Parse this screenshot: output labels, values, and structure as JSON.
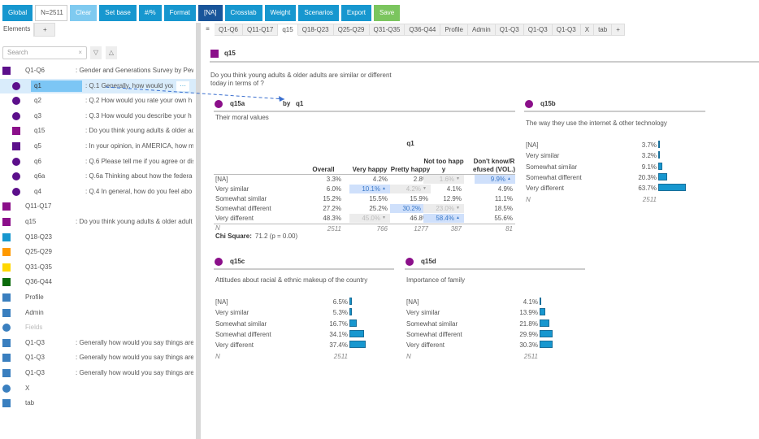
{
  "toolbar": {
    "global": "Global",
    "n": "N=2511",
    "clear": "Clear",
    "set_base": "Set base",
    "pct": "#/%",
    "format": "Format",
    "na": "[NA]",
    "crosstab": "Crosstab",
    "weight": "Weight",
    "scenarios": "Scenarios",
    "export": "Export",
    "save": "Save"
  },
  "left": {
    "tab": "Elements",
    "plus": "+",
    "search_placeholder": "Search",
    "clear": "×",
    "down": "▽",
    "up": "△",
    "items": [
      {
        "name": "Q1-Q6",
        "desc": ": Gender and Generations Survey by Pew",
        "icon": "square",
        "color": "#5c0f8b",
        "indent": 0
      },
      {
        "name": "q1",
        "desc": ": Q.1 Generally, how would you say",
        "icon": "circle",
        "color": "#5c0f8b",
        "indent": 1,
        "selected": true
      },
      {
        "name": "q2",
        "desc": ": Q.2 How would you rate your own h",
        "icon": "circle",
        "color": "#5c0f8b",
        "indent": 1
      },
      {
        "name": "q3",
        "desc": ": Q.3 How would you describe your h",
        "icon": "circle",
        "color": "#5c0f8b",
        "indent": 1
      },
      {
        "name": "q15",
        "desc": ": Do you think young adults & older ad",
        "icon": "square",
        "color": "#8b0f8a",
        "indent": 1
      },
      {
        "name": "q5",
        "desc": ": In your opinion, in AMERICA, how m",
        "icon": "square",
        "color": "#5c0f8b",
        "indent": 1
      },
      {
        "name": "q6",
        "desc": ": Q.6 Please tell me if you agree or dis",
        "icon": "circle",
        "color": "#5c0f8b",
        "indent": 1
      },
      {
        "name": "q6a",
        "desc": ": Q.6a Thinking about how the federa",
        "icon": "circle",
        "color": "#5c0f8b",
        "indent": 1
      },
      {
        "name": "q4",
        "desc": ": Q.4 In general, how do you feel abo",
        "icon": "circle",
        "color": "#5c0f8b",
        "indent": 1
      },
      {
        "name": "Q11-Q17",
        "desc": "",
        "icon": "square",
        "color": "#8b0f8a",
        "indent": 0
      },
      {
        "name": "q15",
        "desc": ": Do you think young adults & older adult",
        "icon": "square",
        "color": "#8b0f8a",
        "indent": 0
      },
      {
        "name": "Q18-Q23",
        "desc": "",
        "icon": "square",
        "color": "#1797cf",
        "indent": 0
      },
      {
        "name": "Q25-Q29",
        "desc": "",
        "icon": "square",
        "color": "#ff9900",
        "indent": 0
      },
      {
        "name": "Q31-Q35",
        "desc": "",
        "icon": "square",
        "color": "#ffd700",
        "indent": 0
      },
      {
        "name": "Q36-Q44",
        "desc": "",
        "icon": "square",
        "color": "#0b6b0b",
        "indent": 0
      },
      {
        "name": "Profile",
        "desc": "",
        "icon": "square",
        "color": "#3a7fbf",
        "indent": 0
      },
      {
        "name": "Admin",
        "desc": "",
        "icon": "square",
        "color": "#3a7fbf",
        "indent": 0
      },
      {
        "name": "Fields",
        "desc": "",
        "icon": "circle",
        "color": "#3a7fbf",
        "indent": 0,
        "muted": true
      },
      {
        "name": "Q1-Q3",
        "desc": ": Generally how would you say things are",
        "icon": "square",
        "color": "#3a7fbf",
        "indent": 0
      },
      {
        "name": "Q1-Q3",
        "desc": ": Generally how would you say things are",
        "icon": "square",
        "color": "#3a7fbf",
        "indent": 0
      },
      {
        "name": "Q1-Q3",
        "desc": ": Generally how would you say things are",
        "icon": "square",
        "color": "#3a7fbf",
        "indent": 0
      },
      {
        "name": "X",
        "desc": "",
        "icon": "circle",
        "color": "#3a7fbf",
        "indent": 0
      },
      {
        "name": "tab",
        "desc": "",
        "icon": "square",
        "color": "#3a7fbf",
        "indent": 0
      }
    ],
    "more": "···"
  },
  "tabs": {
    "menu": "≡",
    "items": [
      "Q1-Q6",
      "Q11-Q17",
      "q15",
      "Q18-Q23",
      "Q25-Q29",
      "Q31-Q35",
      "Q36-Q44",
      "Profile",
      "Admin",
      "Q1-Q3",
      "Q1-Q3",
      "Q1-Q3",
      "X",
      "tab",
      "+"
    ],
    "active": 2
  },
  "main": {
    "title": "q15",
    "question": "Do you think young adults & older adults are similar or different today in terms of  ?",
    "color": "#8b0f8a",
    "q15a": {
      "name": "q15a",
      "by": "by",
      "by_var": "q1",
      "subtitle": "Their moral values",
      "group": "q1",
      "columns": [
        "Overall",
        "Very happy",
        "Pretty happy",
        "Not too happy",
        "Don't know/Refused (VOL.)"
      ],
      "rows": [
        {
          "label": "[NA]",
          "cells": [
            [
              "3.3%",
              ""
            ],
            [
              "4.2%",
              ""
            ],
            [
              "2.8%",
              ""
            ],
            [
              "1.6%",
              "dn"
            ],
            [
              "9.9%",
              "up"
            ]
          ]
        },
        {
          "label": "Very similar",
          "cells": [
            [
              "6.0%",
              ""
            ],
            [
              "10.1%",
              "up"
            ],
            [
              "4.2%",
              "dn"
            ],
            [
              "4.1%",
              ""
            ],
            [
              "4.9%",
              ""
            ]
          ]
        },
        {
          "label": "Somewhat similar",
          "cells": [
            [
              "15.2%",
              ""
            ],
            [
              "15.5%",
              ""
            ],
            [
              "15.9%",
              ""
            ],
            [
              "12.9%",
              ""
            ],
            [
              "11.1%",
              ""
            ]
          ]
        },
        {
          "label": "Somewhat different",
          "cells": [
            [
              "27.2%",
              ""
            ],
            [
              "25.2%",
              ""
            ],
            [
              "30.2%",
              "up"
            ],
            [
              "23.0%",
              "dn"
            ],
            [
              "18.5%",
              ""
            ]
          ]
        },
        {
          "label": "Very different",
          "cells": [
            [
              "48.3%",
              ""
            ],
            [
              "45.0%",
              "dn"
            ],
            [
              "46.8%",
              ""
            ],
            [
              "58.4%",
              "up"
            ],
            [
              "55.6%",
              ""
            ]
          ]
        }
      ],
      "n_label": "N",
      "n": [
        "2511",
        "766",
        "1277",
        "387",
        "81"
      ],
      "chi_label": "Chi Square:",
      "chi_value": "71.2 (p = 0.00)"
    },
    "cards": [
      {
        "name": "q15b",
        "subtitle": "The way they use the internet & other technology",
        "labels": [
          "[NA]",
          "Very similar",
          "Somewhat similar",
          "Somewhat different",
          "Very different"
        ],
        "values": [
          "3.7%",
          "3.2%",
          "9.1%",
          "20.3%",
          "63.7%"
        ],
        "pct": [
          3.7,
          3.2,
          9.1,
          20.3,
          63.7
        ],
        "n_label": "N",
        "n": "2511"
      },
      {
        "name": "q15c",
        "subtitle": "Attitudes about racial & ethnic makeup of the country",
        "labels": [
          "[NA]",
          "Very similar",
          "Somewhat similar",
          "Somewhat different",
          "Very different"
        ],
        "values": [
          "6.5%",
          "5.3%",
          "16.7%",
          "34.1%",
          "37.4%"
        ],
        "pct": [
          6.5,
          5.3,
          16.7,
          34.1,
          37.4
        ],
        "n_label": "N",
        "n": "2511"
      },
      {
        "name": "q15d",
        "subtitle": "Importance of family",
        "labels": [
          "[NA]",
          "Very similar",
          "Somewhat similar",
          "Somewhat different",
          "Very different"
        ],
        "values": [
          "4.1%",
          "13.9%",
          "21.8%",
          "29.9%",
          "30.3%"
        ],
        "pct": [
          4.1,
          13.9,
          21.8,
          29.9,
          30.3
        ],
        "n_label": "N",
        "n": "2511"
      }
    ]
  }
}
